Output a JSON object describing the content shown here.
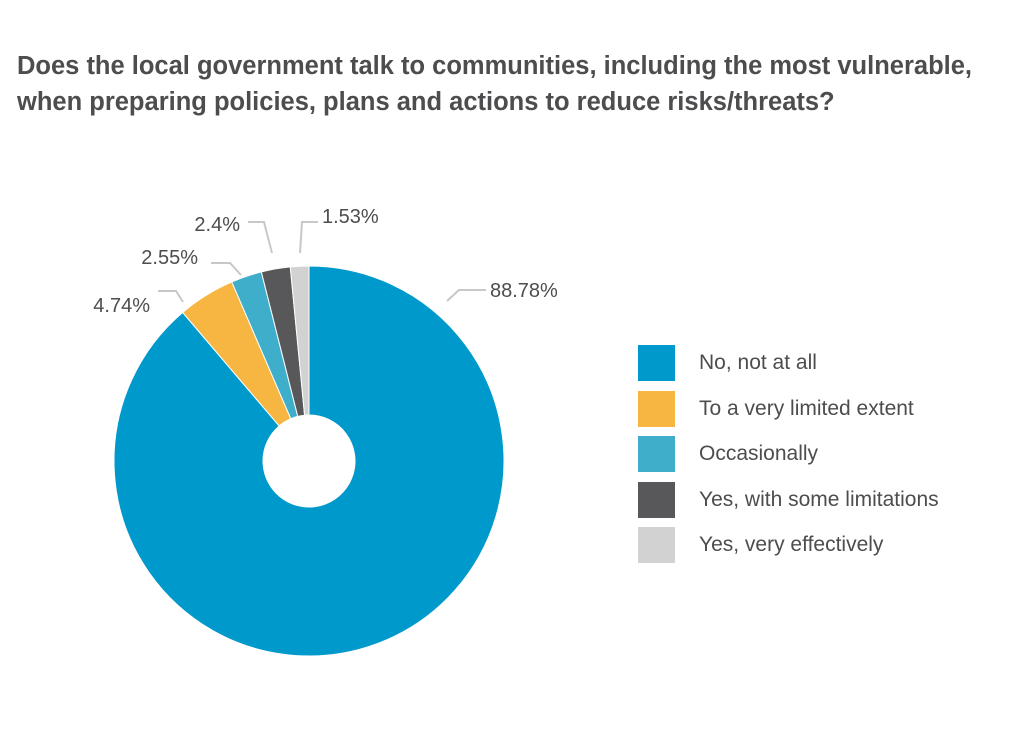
{
  "title": "Does the local government talk to communities, including the most vulnerable, when preparing policies, plans and actions to reduce risks/threats?",
  "chart_data": {
    "type": "pie",
    "title": "Does the local government talk to communities, including the most vulnerable, when preparing policies, plans and actions to reduce risks/threats?",
    "donut": true,
    "legend_position": "right",
    "slices": [
      {
        "name": "No, not at all",
        "value": 88.78,
        "label": "88.78%",
        "color": "#0099cc"
      },
      {
        "name": "To a very limited extent",
        "value": 4.74,
        "label": "4.74%",
        "color": "#f7b541"
      },
      {
        "name": "Occasionally",
        "value": 2.55,
        "label": "2.55%",
        "color": "#3eaecb"
      },
      {
        "name": "Yes, with some limitations",
        "value": 2.4,
        "label": "2.4%",
        "color": "#58585a"
      },
      {
        "name": "Yes, very effectively",
        "value": 1.53,
        "label": "1.53%",
        "color": "#d2d2d2"
      }
    ]
  }
}
